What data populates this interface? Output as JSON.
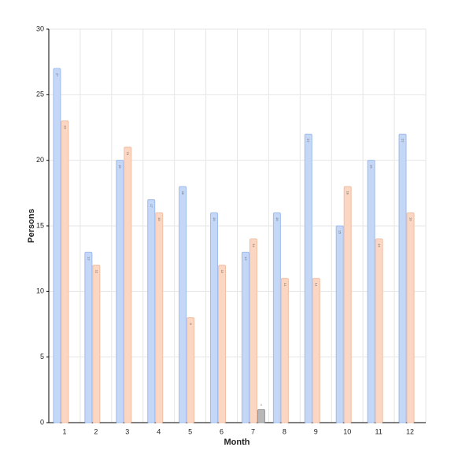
{
  "chart_data": {
    "type": "bar",
    "x_label": "Month",
    "y_label": "Persons",
    "categories": [
      "1",
      "2",
      "3",
      "4",
      "5",
      "6",
      "7",
      "8",
      "9",
      "10",
      "11",
      "12"
    ],
    "series": [
      {
        "color": "#c5d7f7",
        "values": [
          27,
          13,
          20,
          17,
          18,
          16,
          13,
          16,
          22,
          15,
          20,
          22
        ]
      },
      {
        "color": "#fad6c3",
        "values": [
          23,
          12,
          21,
          16,
          8,
          12,
          14,
          11,
          11,
          18,
          14,
          16
        ]
      },
      {
        "color": "#b8b8b8",
        "values": [
          null,
          null,
          null,
          null,
          null,
          null,
          1,
          null,
          null,
          null,
          null,
          null
        ]
      }
    ],
    "ylim": [
      0,
      30
    ],
    "yticks": [
      0,
      5,
      10,
      15,
      20,
      25,
      30
    ],
    "grid": true
  }
}
